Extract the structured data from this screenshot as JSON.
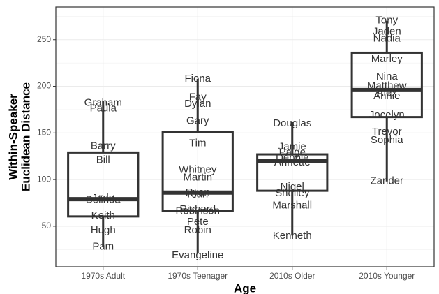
{
  "chart_data": {
    "type": "box",
    "xlabel": "Age",
    "ylabel": [
      "Within-Speaker",
      "Euclidean Distance"
    ],
    "categories": [
      "1970s Adult",
      "1970s Teenager",
      "2010s Older",
      "2010s Younger"
    ],
    "boxes": [
      {
        "min": 28,
        "q1": 60.5,
        "median": 79,
        "q3": 129,
        "max": 184
      },
      {
        "min": 21,
        "q1": 66.5,
        "median": 86,
        "q3": 151,
        "max": 208
      },
      {
        "min": 40,
        "q1": 88,
        "median": 120,
        "q3": 127,
        "max": 162
      },
      {
        "min": 98,
        "q1": 167,
        "median": 196,
        "q3": 236,
        "max": 270
      }
    ],
    "labels": [
      [
        {
          "name": "Graham",
          "value": 182
        },
        {
          "name": "Paula",
          "value": 176
        },
        {
          "name": "Barry",
          "value": 135.5
        },
        {
          "name": "Bill",
          "value": 120.5
        },
        {
          "name": "Jada",
          "value": 80
        },
        {
          "name": "Belinda",
          "value": 78
        },
        {
          "name": "Keith",
          "value": 61
        },
        {
          "name": "Hugh",
          "value": 45.5
        },
        {
          "name": "Pam",
          "value": 28
        }
      ],
      [
        {
          "name": "Fiona",
          "value": 208
        },
        {
          "name": "Fay",
          "value": 188
        },
        {
          "name": "Dylan",
          "value": 181
        },
        {
          "name": "Gary",
          "value": 162.5
        },
        {
          "name": "Tim",
          "value": 138.5
        },
        {
          "name": "Whitney",
          "value": 110
        },
        {
          "name": "Martin",
          "value": 102
        },
        {
          "name": "Ryan",
          "value": 86
        },
        {
          "name": "Kian",
          "value": 84
        },
        {
          "name": "Richard",
          "value": 68
        },
        {
          "name": "Robinson",
          "value": 66
        },
        {
          "name": "Pete",
          "value": 54.5
        },
        {
          "name": "Robin",
          "value": 45.5
        },
        {
          "name": "Evangeline",
          "value": 18.5
        }
      ],
      [
        {
          "name": "Douglas",
          "value": 160
        },
        {
          "name": "Jamie",
          "value": 135
        },
        {
          "name": "Paige",
          "value": 129
        },
        {
          "name": "Debbie",
          "value": 123
        },
        {
          "name": "Annette",
          "value": 118
        },
        {
          "name": "Nigel",
          "value": 92
        },
        {
          "name": "Shelley",
          "value": 85
        },
        {
          "name": "Marshall",
          "value": 72
        },
        {
          "name": "Kenneth",
          "value": 39.5
        }
      ],
      [
        {
          "name": "Tony",
          "value": 270.5
        },
        {
          "name": "Jaden",
          "value": 258.5
        },
        {
          "name": "Nadia",
          "value": 251
        },
        {
          "name": "Marley",
          "value": 229
        },
        {
          "name": "Nina",
          "value": 210
        },
        {
          "name": "Matthew",
          "value": 200
        },
        {
          "name": "Alex",
          "value": 192.5
        },
        {
          "name": "Annie",
          "value": 189
        },
        {
          "name": "Jocelyn",
          "value": 169
        },
        {
          "name": "Trevor",
          "value": 151
        },
        {
          "name": "Sophia",
          "value": 142
        },
        {
          "name": "Zander",
          "value": 98
        }
      ]
    ],
    "ylim": [
      6.5,
      285
    ],
    "yticks": [
      50,
      100,
      150,
      200,
      250
    ],
    "minor_yticks": [
      25,
      75,
      125,
      175,
      225,
      275
    ],
    "grid": true,
    "color": "#333333"
  }
}
